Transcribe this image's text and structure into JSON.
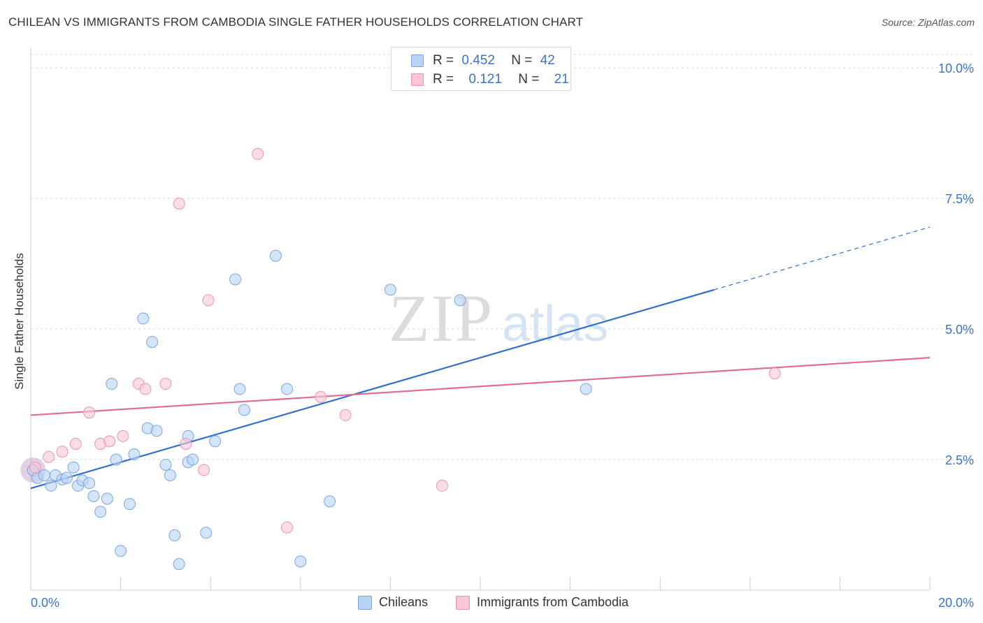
{
  "header": {
    "title": "CHILEAN VS IMMIGRANTS FROM CAMBODIA SINGLE FATHER HOUSEHOLDS CORRELATION CHART",
    "source": "Source: ZipAtlas.com"
  },
  "legend": {
    "items": [
      {
        "r_label": "R =",
        "r_value": "0.452",
        "n_label": "N =",
        "n_value": "42"
      },
      {
        "r_label": "R =",
        "r_value": "0.121",
        "n_label": "N =",
        "n_value": "21"
      }
    ]
  },
  "bottom_legend": [
    "Chileans",
    "Immigrants from Cambodia"
  ],
  "watermark": {
    "zip": "ZIP",
    "atlas": "atlas"
  },
  "colors": {
    "blue_fill": "#b8d4f5",
    "blue_stroke": "#7aa6e0",
    "blue_line": "#2f6fcf",
    "pink_fill": "#f9c6d6",
    "pink_stroke": "#ec94b0",
    "pink_line": "#e26b95",
    "tick_label": "#3a73c9",
    "grid": "#d5d5d5"
  },
  "chart_data": {
    "type": "scatter",
    "ylabel": "Single Father Households",
    "xlabel": "",
    "xlim": [
      0,
      20
    ],
    "ylim": [
      0,
      10.3
    ],
    "x_tick_labels": [
      "0.0%",
      "20.0%"
    ],
    "y_ticks": [
      2.5,
      5.0,
      7.5,
      10.0
    ],
    "y_tick_labels": [
      "2.5%",
      "5.0%",
      "7.5%",
      "10.0%"
    ],
    "grid": true,
    "legend_position": "top-center",
    "series": [
      {
        "name": "Chileans",
        "color": "#7aa6e0",
        "points": [
          [
            0.05,
            2.3
          ],
          [
            0.15,
            2.15
          ],
          [
            0.3,
            2.2
          ],
          [
            0.45,
            2.0
          ],
          [
            0.55,
            2.2
          ],
          [
            0.7,
            2.12
          ],
          [
            0.8,
            2.15
          ],
          [
            0.95,
            2.35
          ],
          [
            1.05,
            2.0
          ],
          [
            1.15,
            2.1
          ],
          [
            1.3,
            2.05
          ],
          [
            1.4,
            1.8
          ],
          [
            1.55,
            1.5
          ],
          [
            1.7,
            1.75
          ],
          [
            1.8,
            3.95
          ],
          [
            1.9,
            2.5
          ],
          [
            2.0,
            0.75
          ],
          [
            2.2,
            1.65
          ],
          [
            2.3,
            2.6
          ],
          [
            2.5,
            5.2
          ],
          [
            2.6,
            3.1
          ],
          [
            2.7,
            4.75
          ],
          [
            2.8,
            3.05
          ],
          [
            3.0,
            2.4
          ],
          [
            3.1,
            2.2
          ],
          [
            3.2,
            1.05
          ],
          [
            3.3,
            0.5
          ],
          [
            3.5,
            2.95
          ],
          [
            3.5,
            2.45
          ],
          [
            3.6,
            2.5
          ],
          [
            3.9,
            1.1
          ],
          [
            4.1,
            2.85
          ],
          [
            4.55,
            5.95
          ],
          [
            4.65,
            3.85
          ],
          [
            4.75,
            3.45
          ],
          [
            5.45,
            6.4
          ],
          [
            5.7,
            3.85
          ],
          [
            6.0,
            0.55
          ],
          [
            6.65,
            1.7
          ],
          [
            8.0,
            5.75
          ],
          [
            9.55,
            5.55
          ],
          [
            12.35,
            3.85
          ]
        ],
        "trend": {
          "x": [
            0,
            15.2
          ],
          "y": [
            1.95,
            5.75
          ],
          "dashed_extension": {
            "x": [
              15.2,
              20
            ],
            "y": [
              5.75,
              6.95
            ]
          }
        }
      },
      {
        "name": "Immigrants from Cambodia",
        "color": "#ec94b0",
        "points": [
          [
            0.1,
            2.35
          ],
          [
            0.4,
            2.55
          ],
          [
            0.7,
            2.65
          ],
          [
            1.0,
            2.8
          ],
          [
            1.3,
            3.4
          ],
          [
            1.55,
            2.8
          ],
          [
            1.75,
            2.85
          ],
          [
            2.05,
            2.95
          ],
          [
            2.4,
            3.95
          ],
          [
            2.55,
            3.85
          ],
          [
            3.0,
            3.95
          ],
          [
            3.3,
            7.4
          ],
          [
            3.45,
            2.8
          ],
          [
            3.85,
            2.3
          ],
          [
            3.95,
            5.55
          ],
          [
            5.05,
            8.35
          ],
          [
            5.7,
            1.2
          ],
          [
            6.45,
            3.7
          ],
          [
            7.0,
            3.35
          ],
          [
            9.15,
            2.0
          ],
          [
            16.55,
            4.15
          ]
        ],
        "trend": {
          "x": [
            0,
            20
          ],
          "y": [
            3.35,
            4.45
          ]
        }
      }
    ]
  }
}
